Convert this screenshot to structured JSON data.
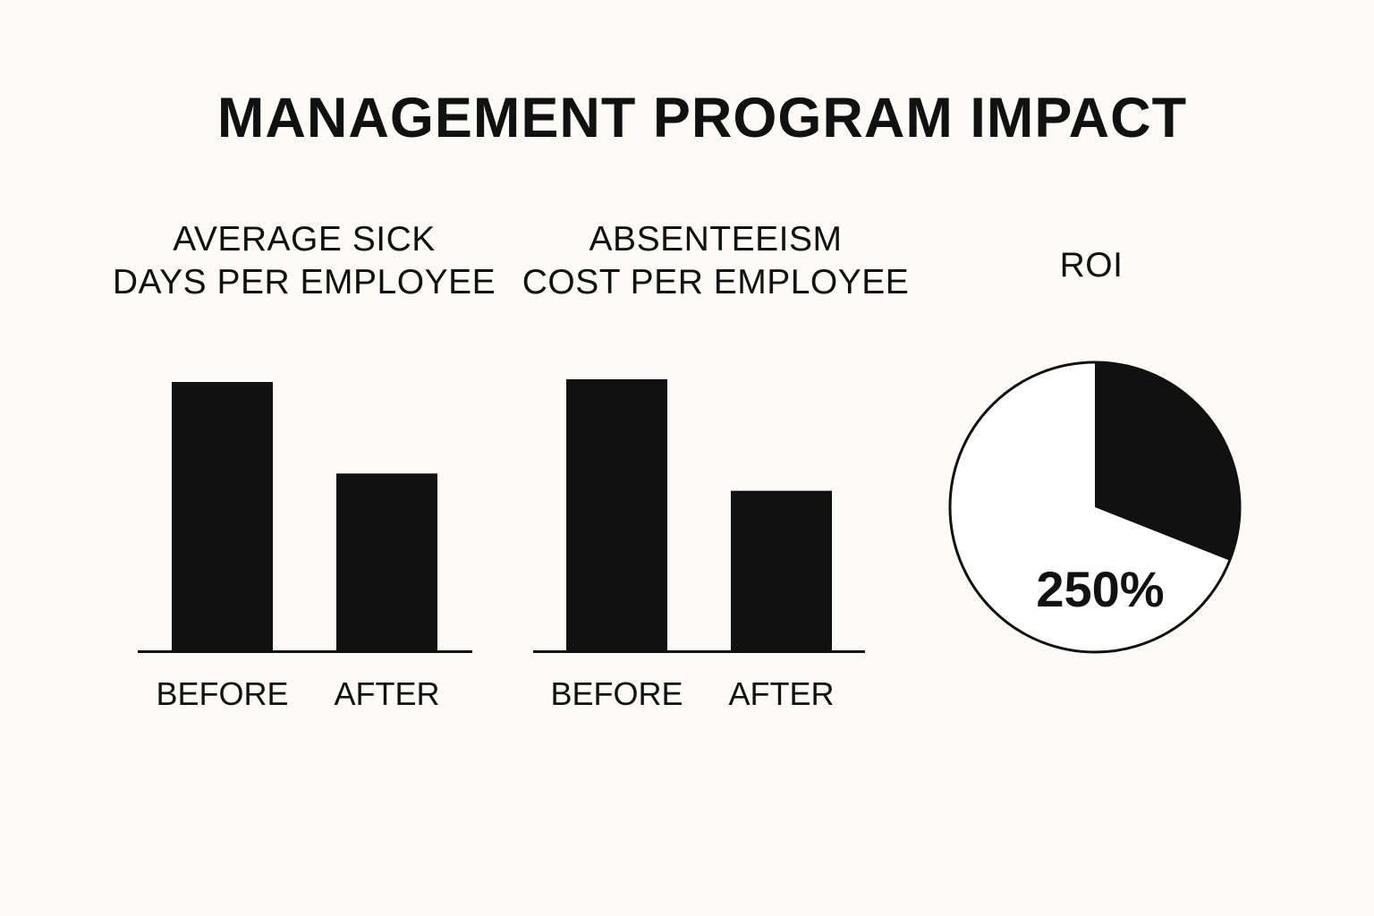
{
  "title": "MANAGEMENT PROGRAM IMPACT",
  "colors": {
    "background": "#fcfbf8",
    "ink": "#111111",
    "pie_empty": "#ffffff"
  },
  "chart_data": [
    {
      "type": "bar",
      "title_lines": [
        "AVERAGE SICK",
        "DAYS PER EMPLOYEE"
      ],
      "categories": [
        "BEFORE",
        "AFTER"
      ],
      "values": [
        1.0,
        0.66
      ],
      "value_note": "relative bar heights; no axis or scale shown"
    },
    {
      "type": "bar",
      "title_lines": [
        "ABSENTEEISM",
        "COST PER EMPLOYEE"
      ],
      "categories": [
        "BEFORE",
        "AFTER"
      ],
      "values": [
        1.0,
        0.59
      ],
      "value_note": "relative bar heights; no axis or scale shown"
    },
    {
      "type": "pie",
      "title_lines": [
        "ROI"
      ],
      "slices": [
        {
          "label": "filled",
          "fraction": 0.31,
          "color": "#111111"
        },
        {
          "label": "empty",
          "fraction": 0.69,
          "color": "#ffffff"
        }
      ],
      "value_label": "250%"
    }
  ]
}
